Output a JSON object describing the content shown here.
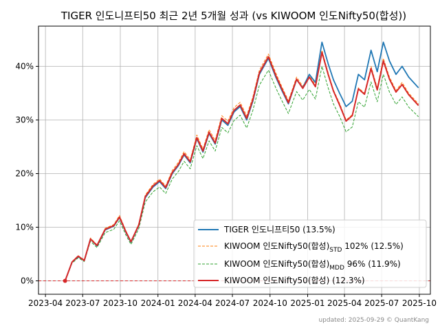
{
  "chart_data": {
    "type": "line",
    "title": "TIGER 인도니프티50 최근 2년 5개월 성과 (vs KIWOOM 인도Nifty50(합성))",
    "footer": "updated: 2025-09-29 © QuantKang",
    "xlabel": "",
    "ylabel": "",
    "x_ticks": [
      "2023-04",
      "2023-07",
      "2023-10",
      "2024-01",
      "2024-04",
      "2024-07",
      "2024-10",
      "2025-01",
      "2025-04",
      "2025-07",
      "2025-10"
    ],
    "y_ticks": [
      "0%",
      "10%",
      "20%",
      "30%",
      "40%"
    ],
    "ylim": [
      -2.5,
      47.5
    ],
    "xlim": [
      "2023-03-15",
      "2025-10-28"
    ],
    "grid": true,
    "legend_position": "lower-right",
    "baseline": 0,
    "series": [
      {
        "legend": "TIGER 인도니프티50 (13.5%)",
        "color": "#1f77b4",
        "style": "solid",
        "x": [
          "2023-05-19",
          "2023-06-05",
          "2023-06-20",
          "2023-07-05",
          "2023-07-20",
          "2023-08-05",
          "2023-08-25",
          "2023-09-15",
          "2023-09-29",
          "2023-10-15",
          "2023-10-27",
          "2023-11-15",
          "2023-12-01",
          "2023-12-20",
          "2024-01-05",
          "2024-01-20",
          "2024-02-05",
          "2024-02-20",
          "2024-03-05",
          "2024-03-20",
          "2024-04-05",
          "2024-04-20",
          "2024-05-05",
          "2024-05-20",
          "2024-06-05",
          "2024-06-20",
          "2024-07-05",
          "2024-07-20",
          "2024-08-05",
          "2024-08-20",
          "2024-09-05",
          "2024-09-27",
          "2024-10-15",
          "2024-10-30",
          "2024-11-15",
          "2024-12-05",
          "2024-12-20",
          "2025-01-05",
          "2025-01-20",
          "2025-02-05",
          "2025-02-20",
          "2025-03-05",
          "2025-03-20",
          "2025-04-05",
          "2025-04-20",
          "2025-05-05",
          "2025-05-20",
          "2025-06-05",
          "2025-06-20",
          "2025-07-05",
          "2025-07-20",
          "2025-08-05",
          "2025-08-20",
          "2025-09-05",
          "2025-09-29"
        ],
        "values": [
          0,
          3.5,
          4.5,
          3.8,
          7.8,
          6.5,
          9.5,
          10.2,
          11.8,
          9.0,
          7.2,
          10.3,
          15.5,
          17.5,
          18.5,
          17.2,
          20.0,
          21.5,
          23.5,
          22.0,
          26.5,
          24.0,
          27.5,
          25.5,
          30.0,
          29.0,
          31.5,
          32.5,
          30.0,
          33.5,
          38.5,
          41.5,
          38.0,
          35.5,
          33.0,
          37.5,
          36.0,
          38.5,
          37.0,
          44.5,
          40.5,
          37.5,
          35.0,
          32.5,
          33.5,
          38.5,
          37.5,
          43.0,
          39.0,
          44.5,
          41.0,
          38.5,
          40.0,
          38.0,
          36.0
        ]
      },
      {
        "legend": "KIWOOM 인도Nifty50(합성)STD 102% (12.5%)",
        "color": "#ff7f0e",
        "style": "dashed",
        "x": [
          "2023-05-19",
          "2023-06-05",
          "2023-06-20",
          "2023-07-05",
          "2023-07-20",
          "2023-08-05",
          "2023-08-25",
          "2023-09-15",
          "2023-09-29",
          "2023-10-15",
          "2023-10-27",
          "2023-11-15",
          "2023-12-01",
          "2023-12-20",
          "2024-01-05",
          "2024-01-20",
          "2024-02-05",
          "2024-02-20",
          "2024-03-05",
          "2024-03-20",
          "2024-04-05",
          "2024-04-20",
          "2024-05-05",
          "2024-05-20",
          "2024-06-05",
          "2024-06-20",
          "2024-07-05",
          "2024-07-20",
          "2024-08-05",
          "2024-08-20",
          "2024-09-05",
          "2024-09-27",
          "2024-10-15",
          "2024-10-30",
          "2024-11-15",
          "2024-12-05",
          "2024-12-20",
          "2025-01-05",
          "2025-01-20",
          "2025-02-05",
          "2025-02-20",
          "2025-03-05",
          "2025-03-20",
          "2025-04-05",
          "2025-04-20",
          "2025-05-05",
          "2025-05-20",
          "2025-06-05",
          "2025-06-20",
          "2025-07-05",
          "2025-07-20",
          "2025-08-05",
          "2025-08-20",
          "2025-09-05",
          "2025-09-29"
        ],
        "values": [
          0,
          3.6,
          4.7,
          3.9,
          8.0,
          6.7,
          9.8,
          10.5,
          12.2,
          9.3,
          7.4,
          10.6,
          16.0,
          18.0,
          19.0,
          17.7,
          20.6,
          22.1,
          24.1,
          22.6,
          27.2,
          24.6,
          28.2,
          26.2,
          30.8,
          29.8,
          32.3,
          33.3,
          30.8,
          34.3,
          39.3,
          42.3,
          38.8,
          36.2,
          33.6,
          38.0,
          36.3,
          38.4,
          36.5,
          43.0,
          38.8,
          35.6,
          33.1,
          30.0,
          31.0,
          36.0,
          35.0,
          40.0,
          36.0,
          41.5,
          38.0,
          35.5,
          37.0,
          35.0,
          33.0
        ]
      },
      {
        "legend": "KIWOOM 인도Nifty50(합성)MDD 96% (11.9%)",
        "color": "#2ca02c",
        "style": "dashed",
        "x": [
          "2023-05-19",
          "2023-06-05",
          "2023-06-20",
          "2023-07-05",
          "2023-07-20",
          "2023-08-05",
          "2023-08-25",
          "2023-09-15",
          "2023-09-29",
          "2023-10-15",
          "2023-10-27",
          "2023-11-15",
          "2023-12-01",
          "2023-12-20",
          "2024-01-05",
          "2024-01-20",
          "2024-02-05",
          "2024-02-20",
          "2024-03-05",
          "2024-03-20",
          "2024-04-05",
          "2024-04-20",
          "2024-05-05",
          "2024-05-20",
          "2024-06-05",
          "2024-06-20",
          "2024-07-05",
          "2024-07-20",
          "2024-08-05",
          "2024-08-20",
          "2024-09-05",
          "2024-09-27",
          "2024-10-15",
          "2024-10-30",
          "2024-11-15",
          "2024-12-05",
          "2024-12-20",
          "2025-01-05",
          "2025-01-20",
          "2025-02-05",
          "2025-02-20",
          "2025-03-05",
          "2025-03-20",
          "2025-04-05",
          "2025-04-20",
          "2025-05-05",
          "2025-05-20",
          "2025-06-05",
          "2025-06-20",
          "2025-07-05",
          "2025-07-20",
          "2025-08-05",
          "2025-08-20",
          "2025-09-05",
          "2025-09-29"
        ],
        "values": [
          0,
          3.3,
          4.3,
          3.6,
          7.4,
          6.2,
          9.0,
          9.6,
          11.2,
          8.5,
          6.8,
          9.7,
          14.7,
          16.6,
          17.5,
          16.3,
          19.0,
          20.4,
          22.3,
          20.9,
          25.2,
          22.8,
          26.1,
          24.2,
          28.6,
          27.6,
          29.9,
          30.9,
          28.5,
          31.8,
          36.5,
          39.3,
          36.0,
          33.6,
          31.2,
          35.3,
          33.7,
          35.7,
          33.9,
          40.0,
          36.0,
          33.0,
          30.7,
          27.8,
          28.7,
          33.4,
          32.4,
          37.1,
          33.4,
          38.5,
          35.2,
          32.9,
          34.3,
          32.4,
          30.6
        ]
      },
      {
        "legend": "KIWOOM 인도Nifty50(합성) (12.3%)",
        "color": "#d62728",
        "style": "solid",
        "x": [
          "2023-05-19",
          "2023-06-05",
          "2023-06-20",
          "2023-07-05",
          "2023-07-20",
          "2023-08-05",
          "2023-08-25",
          "2023-09-15",
          "2023-09-29",
          "2023-10-15",
          "2023-10-27",
          "2023-11-15",
          "2023-12-01",
          "2023-12-20",
          "2024-01-05",
          "2024-01-20",
          "2024-02-05",
          "2024-02-20",
          "2024-03-05",
          "2024-03-20",
          "2024-04-05",
          "2024-04-20",
          "2024-05-05",
          "2024-05-20",
          "2024-06-05",
          "2024-06-20",
          "2024-07-05",
          "2024-07-20",
          "2024-08-05",
          "2024-08-20",
          "2024-09-05",
          "2024-09-27",
          "2024-10-15",
          "2024-10-30",
          "2024-11-15",
          "2024-12-05",
          "2024-12-20",
          "2025-01-05",
          "2025-01-20",
          "2025-02-05",
          "2025-02-20",
          "2025-03-05",
          "2025-03-20",
          "2025-04-05",
          "2025-04-20",
          "2025-05-05",
          "2025-05-20",
          "2025-06-05",
          "2025-06-20",
          "2025-07-05",
          "2025-07-20",
          "2025-08-05",
          "2025-08-20",
          "2025-09-05",
          "2025-09-29"
        ],
        "values": [
          0,
          3.5,
          4.6,
          3.8,
          7.8,
          6.6,
          9.6,
          10.3,
          11.9,
          9.1,
          7.3,
          10.4,
          15.7,
          17.7,
          18.7,
          17.4,
          20.2,
          21.7,
          23.7,
          22.2,
          26.7,
          24.2,
          27.7,
          25.7,
          30.3,
          29.3,
          31.8,
          32.8,
          30.3,
          33.8,
          38.8,
          41.8,
          38.3,
          35.8,
          33.2,
          37.6,
          35.9,
          38.0,
          36.2,
          42.6,
          38.5,
          35.4,
          32.8,
          29.8,
          30.8,
          35.8,
          34.8,
          39.6,
          35.6,
          41.0,
          37.6,
          35.2,
          36.6,
          34.7,
          32.7
        ]
      }
    ]
  }
}
